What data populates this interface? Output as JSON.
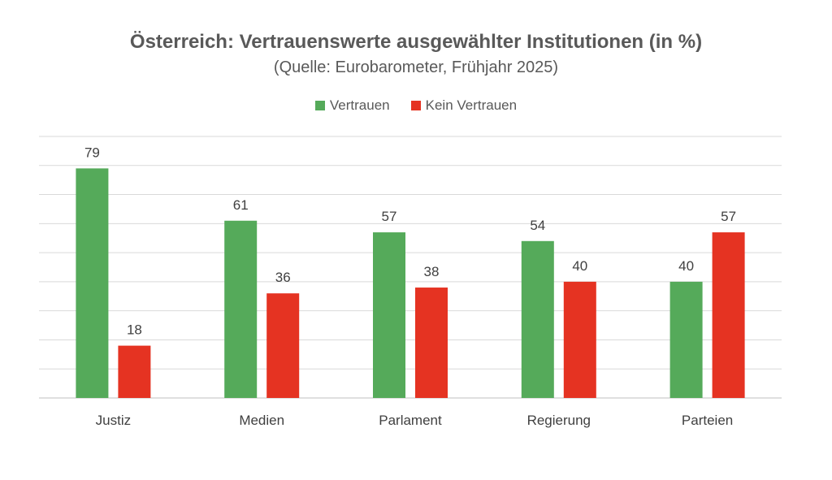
{
  "chart_data": {
    "type": "bar",
    "title": "Österreich: Vertrauenswerte ausgewählter Institutionen (in %)",
    "subtitle": "(Quelle: Eurobarometer, Frühjahr 2025)",
    "categories": [
      "Justiz",
      "Medien",
      "Parlament",
      "Regierung",
      "Parteien"
    ],
    "series": [
      {
        "name": "Vertrauen",
        "values": [
          79,
          61,
          57,
          54,
          40
        ],
        "color": "#55AA5A"
      },
      {
        "name": "Kein Vertrauen",
        "values": [
          18,
          36,
          38,
          40,
          57
        ],
        "color": "#E53322"
      }
    ],
    "ylim": [
      0,
      90
    ],
    "grid": true,
    "legend": "top-center"
  }
}
